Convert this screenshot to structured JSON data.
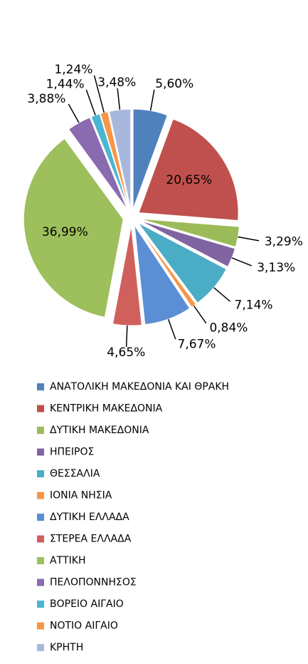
{
  "chart_data": {
    "type": "pie",
    "categories": [
      "ΑΝΑΤΟΛΙΚΗ ΜΑΚΕΔΟΝΙΑ ΚΑΙ ΘΡΑΚΗ",
      "ΚΕΝΤΡΙΚΗ ΜΑΚΕΔΟΝΙΑ",
      "ΔΥΤΙΚΗ ΜΑΚΕΔΟΝΙΑ",
      "ΗΠΕΙΡΟΣ",
      "ΘΕΣΣΑΛΙΑ",
      "ΙΟΝΙΑ ΝΗΣΙΑ",
      "ΔΥΤΙΚΗ ΕΛΛΑΔΑ",
      "ΣΤΕΡΕΑ ΕΛΛΑΔΑ",
      "ΑΤΤΙΚΗ",
      "ΠΕΛΟΠΟΝΝΗΣΟΣ",
      "ΒΟΡΕΙΟ ΑΙΓΑΙΟ",
      "ΝΟΤΙΟ ΑΙΓΑΙΟ",
      "ΚΡΗΤΗ"
    ],
    "values": [
      5.6,
      20.65,
      3.29,
      3.13,
      7.14,
      0.84,
      7.67,
      4.65,
      36.99,
      3.88,
      1.44,
      1.24,
      3.48
    ],
    "value_labels": [
      "5,60%",
      "20,65%",
      "3,29%",
      "3,13%",
      "7,14%",
      "0,84%",
      "7,67%",
      "4,65%",
      "36,99%",
      "3,88%",
      "1,44%",
      "1,24%",
      "3,48%"
    ],
    "colors": [
      "#4f81bd",
      "#c0504d",
      "#9bbb59",
      "#8064a2",
      "#4bacc6",
      "#f79646",
      "#5b8ed4",
      "#d0605c",
      "#9dbf5c",
      "#8a6bb0",
      "#4bb6d1",
      "#f79646",
      "#a8b8dc"
    ],
    "legend": "bottom"
  }
}
